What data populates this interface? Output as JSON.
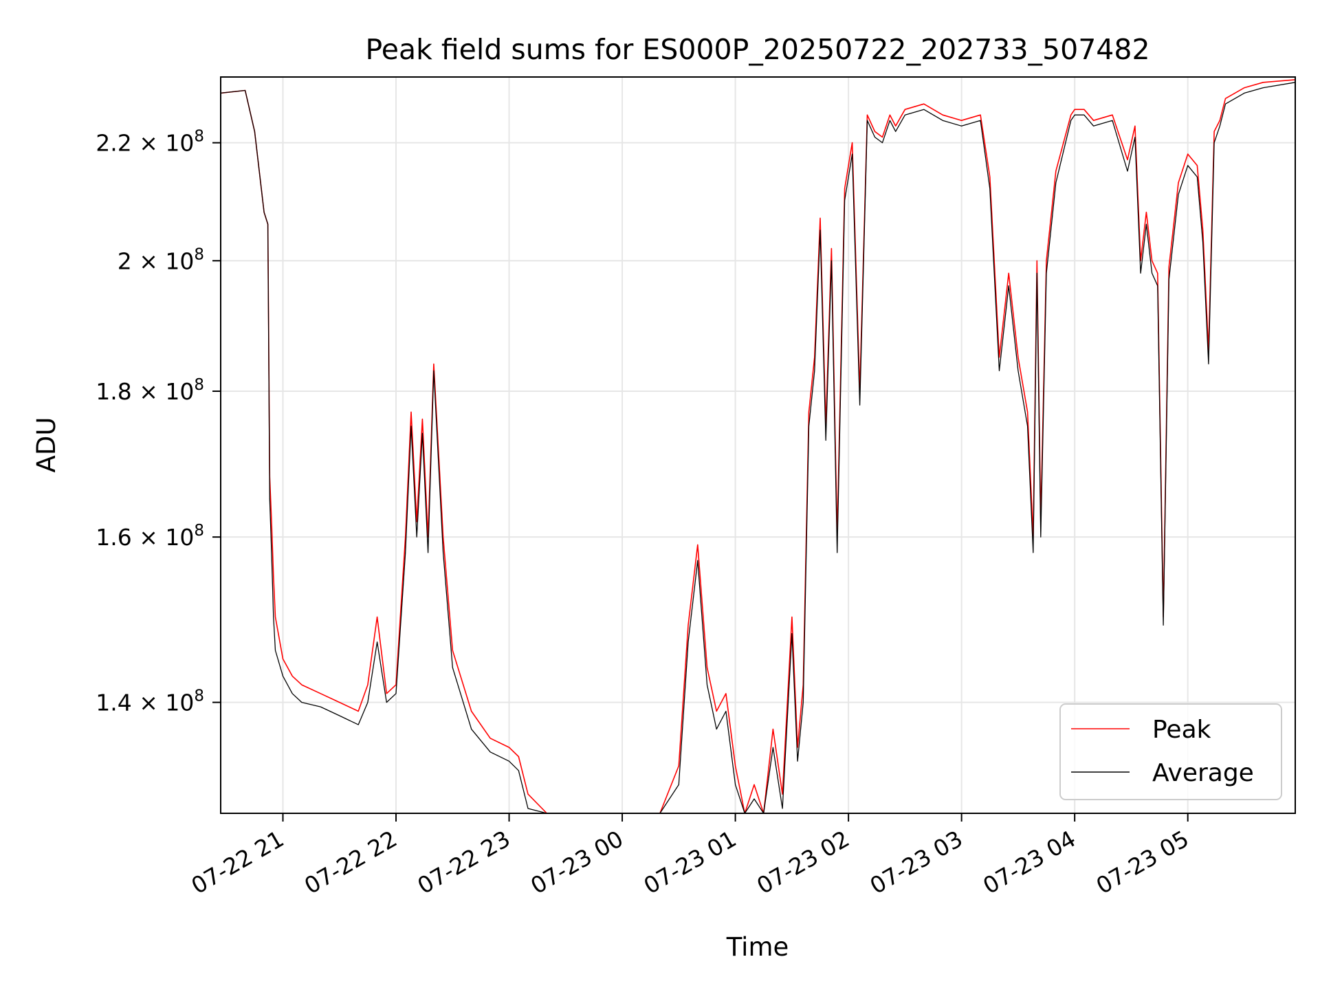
{
  "chart_data": {
    "type": "line",
    "title": "Peak field sums for ES000P_20250722_202733_507482",
    "xlabel": "Time",
    "ylabel": "ADU",
    "y_scale": "log",
    "xlim": [
      "2025-07-22 20:27",
      "2025-07-23 05:57"
    ],
    "ylim": [
      128000000,
      232000000
    ],
    "grid": true,
    "legend_position": "lower right",
    "x_ticks": [
      "07-22 21",
      "07-22 22",
      "07-22 23",
      "07-23 00",
      "07-23 01",
      "07-23 02",
      "07-23 03",
      "07-23 04",
      "07-23 05"
    ],
    "y_ticks": [
      {
        "value": 140000000,
        "mantissa": "1.4",
        "exp": "8"
      },
      {
        "value": 160000000,
        "mantissa": "1.6",
        "exp": "8"
      },
      {
        "value": 180000000,
        "mantissa": "1.8",
        "exp": "8"
      },
      {
        "value": 200000000,
        "mantissa": "2",
        "exp": "8"
      },
      {
        "value": 220000000,
        "mantissa": "2.2",
        "exp": "8"
      }
    ],
    "x": [
      "2025-07-22 20:27",
      "2025-07-22 20:40",
      "2025-07-22 20:45",
      "2025-07-22 20:50",
      "2025-07-22 20:52",
      "2025-07-22 20:53",
      "2025-07-22 20:54",
      "2025-07-22 20:55",
      "2025-07-22 20:56",
      "2025-07-22 21:00",
      "2025-07-22 21:05",
      "2025-07-22 21:10",
      "2025-07-22 21:20",
      "2025-07-22 21:30",
      "2025-07-22 21:40",
      "2025-07-22 21:45",
      "2025-07-22 21:50",
      "2025-07-22 21:55",
      "2025-07-22 22:00",
      "2025-07-22 22:05",
      "2025-07-22 22:08",
      "2025-07-22 22:11",
      "2025-07-22 22:14",
      "2025-07-22 22:17",
      "2025-07-22 22:20",
      "2025-07-22 22:25",
      "2025-07-22 22:30",
      "2025-07-22 22:40",
      "2025-07-22 22:50",
      "2025-07-22 23:00",
      "2025-07-22 23:05",
      "2025-07-22 23:10",
      "2025-07-22 23:20",
      "2025-07-22 23:30",
      "2025-07-22 23:40",
      "2025-07-22 23:50",
      "2025-07-23 00:00",
      "2025-07-23 00:10",
      "2025-07-23 00:20",
      "2025-07-23 00:30",
      "2025-07-23 00:35",
      "2025-07-23 00:40",
      "2025-07-23 00:45",
      "2025-07-23 00:50",
      "2025-07-23 00:55",
      "2025-07-23 01:00",
      "2025-07-23 01:05",
      "2025-07-23 01:10",
      "2025-07-23 01:15",
      "2025-07-23 01:20",
      "2025-07-23 01:25",
      "2025-07-23 01:30",
      "2025-07-23 01:33",
      "2025-07-23 01:36",
      "2025-07-23 01:39",
      "2025-07-23 01:42",
      "2025-07-23 01:45",
      "2025-07-23 01:48",
      "2025-07-23 01:51",
      "2025-07-23 01:54",
      "2025-07-23 01:58",
      "2025-07-23 02:02",
      "2025-07-23 02:06",
      "2025-07-23 02:10",
      "2025-07-23 02:14",
      "2025-07-23 02:18",
      "2025-07-23 02:22",
      "2025-07-23 02:25",
      "2025-07-23 02:30",
      "2025-07-23 02:40",
      "2025-07-23 02:50",
      "2025-07-23 03:00",
      "2025-07-23 03:10",
      "2025-07-23 03:15",
      "2025-07-23 03:20",
      "2025-07-23 03:25",
      "2025-07-23 03:30",
      "2025-07-23 03:35",
      "2025-07-23 03:38",
      "2025-07-23 03:40",
      "2025-07-23 03:42",
      "2025-07-23 03:45",
      "2025-07-23 03:50",
      "2025-07-23 03:58",
      "2025-07-23 04:00",
      "2025-07-23 04:05",
      "2025-07-23 04:10",
      "2025-07-23 04:20",
      "2025-07-23 04:28",
      "2025-07-23 04:32",
      "2025-07-23 04:35",
      "2025-07-23 04:38",
      "2025-07-23 04:41",
      "2025-07-23 04:44",
      "2025-07-23 04:47",
      "2025-07-23 04:50",
      "2025-07-23 04:55",
      "2025-07-23 05:00",
      "2025-07-23 05:05",
      "2025-07-23 05:08",
      "2025-07-23 05:11",
      "2025-07-23 05:14",
      "2025-07-23 05:17",
      "2025-07-23 05:20",
      "2025-07-23 05:30",
      "2025-07-23 05:40",
      "2025-07-23 05:57"
    ],
    "series": [
      {
        "name": "Peak",
        "color": "#ff0000",
        "values": [
          229000000,
          229500000,
          222000000,
          208000000,
          206000000,
          168000000,
          162000000,
          155000000,
          150000000,
          145000000,
          143000000,
          142000000,
          141000000,
          140000000,
          139000000,
          142000000,
          150000000,
          141000000,
          142000000,
          160000000,
          177000000,
          162000000,
          176000000,
          160000000,
          184000000,
          160000000,
          146000000,
          139000000,
          136000000,
          135000000,
          134000000,
          130000000,
          128000000,
          128000000,
          127500000,
          126500000,
          126000000,
          126000000,
          126000000,
          133000000,
          149000000,
          159000000,
          144000000,
          139000000,
          141000000,
          133000000,
          128000000,
          131000000,
          128000000,
          137000000,
          130000000,
          150000000,
          135000000,
          142000000,
          177000000,
          185000000,
          207000000,
          175000000,
          202000000,
          160000000,
          212000000,
          220000000,
          180000000,
          225000000,
          222000000,
          221000000,
          225000000,
          223000000,
          226000000,
          227000000,
          225000000,
          224000000,
          225000000,
          214000000,
          185000000,
          198000000,
          185000000,
          177000000,
          160000000,
          200000000,
          162000000,
          200000000,
          215000000,
          225000000,
          226000000,
          226000000,
          224000000,
          225000000,
          217000000,
          223000000,
          200000000,
          208000000,
          200000000,
          198000000,
          150000000,
          199000000,
          213000000,
          218000000,
          216000000,
          205000000,
          186000000,
          222000000,
          224000000,
          228000000,
          230000000,
          231000000,
          231500000
        ]
      },
      {
        "name": "Average",
        "color": "#000000",
        "values": [
          229000000,
          229500000,
          222000000,
          208000000,
          206000000,
          165000000,
          158000000,
          150000000,
          146000000,
          143000000,
          141000000,
          140000000,
          139500000,
          138500000,
          137500000,
          140000000,
          147000000,
          140000000,
          141000000,
          158000000,
          175000000,
          160000000,
          174000000,
          158000000,
          183000000,
          158000000,
          144000000,
          137000000,
          134500000,
          133500000,
          132500000,
          128500000,
          127000000,
          126500000,
          126500000,
          125500000,
          125200000,
          125200000,
          125300000,
          131000000,
          147000000,
          157000000,
          142000000,
          137000000,
          139000000,
          131000000,
          127000000,
          129500000,
          126500000,
          135000000,
          128500000,
          148000000,
          133500000,
          140000000,
          175000000,
          183000000,
          205000000,
          173000000,
          200000000,
          158000000,
          210000000,
          218000000,
          178000000,
          224000000,
          221000000,
          220000000,
          224000000,
          222000000,
          225000000,
          226000000,
          224000000,
          223000000,
          224000000,
          212000000,
          183000000,
          196000000,
          183000000,
          175000000,
          158000000,
          198000000,
          160000000,
          198000000,
          213000000,
          224000000,
          225000000,
          225000000,
          223000000,
          224000000,
          215000000,
          221000000,
          198000000,
          206000000,
          198000000,
          196000000,
          149000000,
          197000000,
          211000000,
          216000000,
          214000000,
          203000000,
          184000000,
          220000000,
          223000000,
          227000000,
          229000000,
          230000000,
          231000000
        ]
      }
    ]
  }
}
